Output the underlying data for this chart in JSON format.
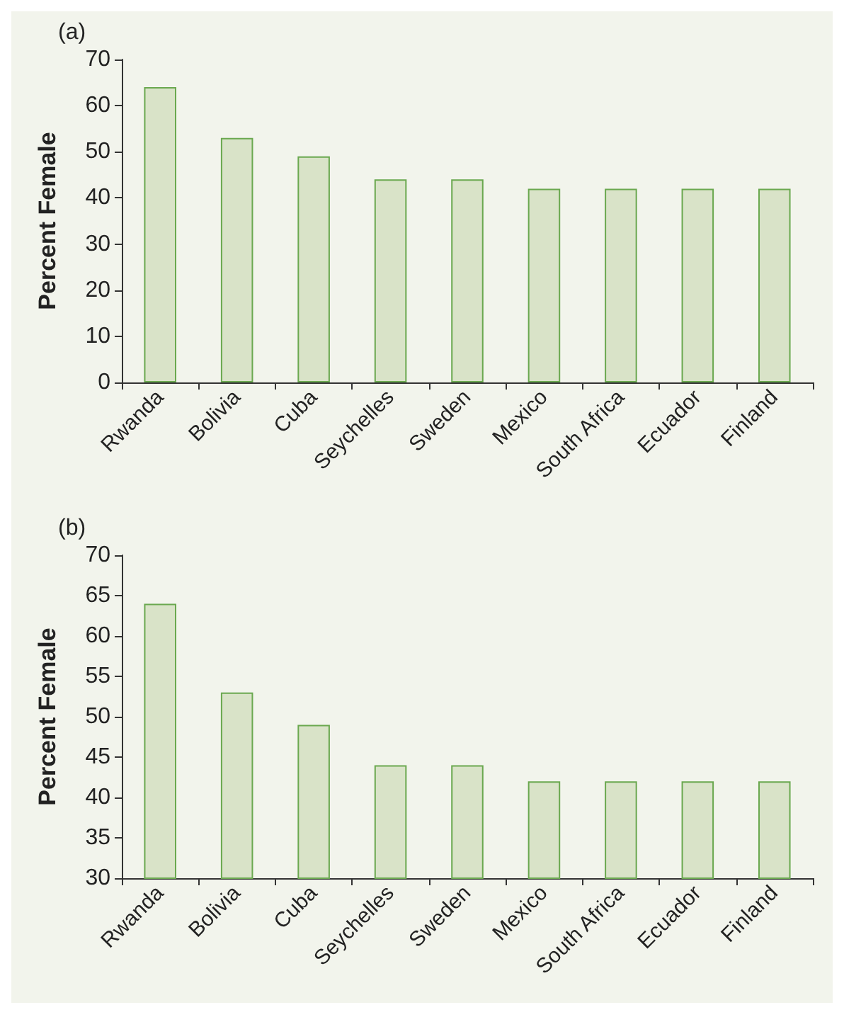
{
  "chart_data": [
    {
      "type": "bar",
      "title": "(a)",
      "ylabel": "Percent Female",
      "categories": [
        "Rwanda",
        "Bolivia",
        "Cuba",
        "Seychelles",
        "Sweden",
        "Mexico",
        "South Africa",
        "Ecuador",
        "Finland"
      ],
      "values": [
        64,
        53,
        49,
        44,
        44,
        42,
        42,
        42,
        42
      ],
      "color": "#d9e3c8",
      "ylim": [
        0,
        70
      ],
      "yticks": [
        0,
        10,
        20,
        30,
        40,
        50,
        60,
        70
      ],
      "grid": false
    },
    {
      "type": "bar",
      "title": "(b)",
      "ylabel": "Percent Female",
      "categories": [
        "Rwanda",
        "Bolivia",
        "Cuba",
        "Seychelles",
        "Sweden",
        "Mexico",
        "South Africa",
        "Ecuador",
        "Finland"
      ],
      "values": [
        64,
        53,
        49,
        44,
        44,
        42,
        42,
        42,
        42
      ],
      "color": "#d9e3c8",
      "ylim": [
        30,
        70
      ],
      "yticks": [
        30,
        35,
        40,
        45,
        50,
        55,
        60,
        65,
        70
      ],
      "grid": false
    }
  ]
}
